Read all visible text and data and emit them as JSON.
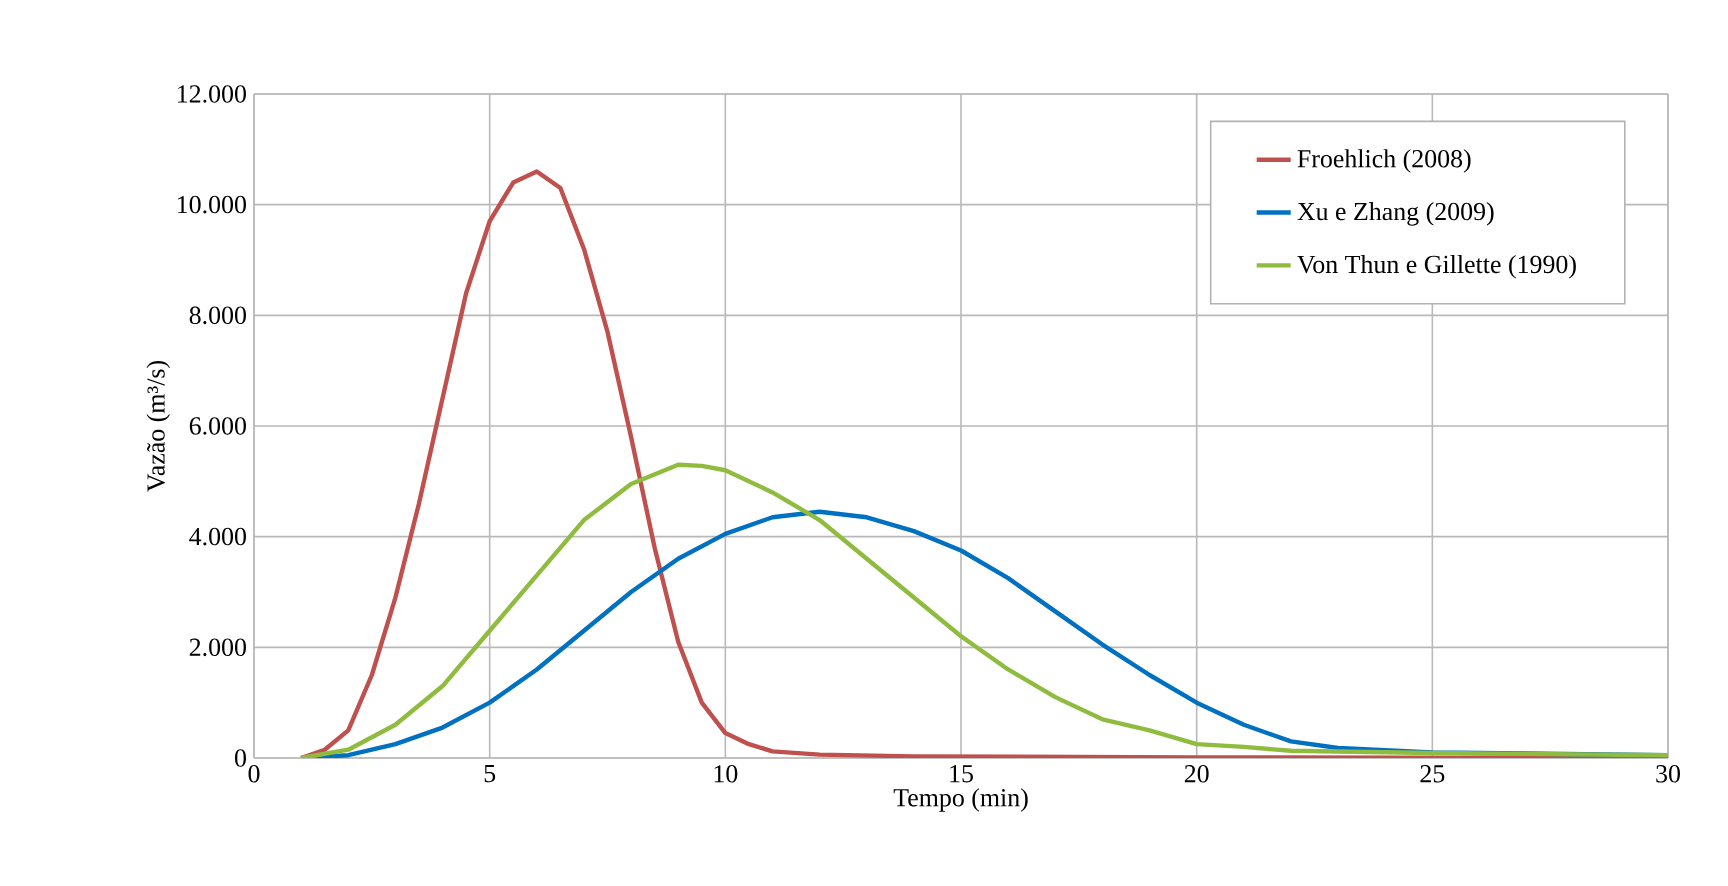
{
  "chart_data": {
    "type": "line",
    "xlabel": "Tempo (min)",
    "ylabel": "Vazão  (m³/s)",
    "xlim": [
      0,
      30
    ],
    "xticks": [
      0,
      5,
      10,
      15,
      20,
      25,
      30
    ],
    "ylim": [
      0,
      12000
    ],
    "yticks": [
      {
        "value": 0,
        "label": "0"
      },
      {
        "value": 2000,
        "label": "2.000"
      },
      {
        "value": 4000,
        "label": "4.000"
      },
      {
        "value": 6000,
        "label": "6.000"
      },
      {
        "value": 8000,
        "label": "8.000"
      },
      {
        "value": 10000,
        "label": "10.000"
      },
      {
        "value": 12000,
        "label": "12.000"
      }
    ],
    "grid": true,
    "legend": "top right",
    "marker": "none",
    "line_style": "solid",
    "series": [
      {
        "name": "Froehlich (2008)",
        "color": "#c0504d",
        "x": [
          1,
          1.5,
          2,
          2.5,
          3,
          3.5,
          4,
          4.5,
          5,
          5.5,
          6,
          6.5,
          7,
          7.5,
          8,
          8.5,
          9,
          9.5,
          10,
          10.5,
          11,
          12,
          14,
          20,
          30
        ],
        "values": [
          0,
          150,
          500,
          1500,
          2900,
          4600,
          6500,
          8400,
          9700,
          10400,
          10600,
          10300,
          9200,
          7700,
          5800,
          3800,
          2100,
          1000,
          450,
          250,
          120,
          60,
          30,
          10,
          0
        ]
      },
      {
        "name": "Xu e Zhang (2009)",
        "color": "#0070c0",
        "x": [
          1,
          2,
          3,
          4,
          5,
          6,
          7,
          8,
          9,
          10,
          11,
          12,
          13,
          14,
          15,
          16,
          17,
          18,
          19,
          20,
          21,
          22,
          23,
          25,
          30
        ],
        "values": [
          0,
          50,
          250,
          550,
          1000,
          1600,
          2300,
          3000,
          3600,
          4050,
          4350,
          4450,
          4350,
          4100,
          3750,
          3250,
          2650,
          2050,
          1500,
          1000,
          600,
          300,
          180,
          100,
          50
        ]
      },
      {
        "name": "Von Thun e Gillette (1990)",
        "color": "#8fbc3f",
        "x": [
          1,
          2,
          3,
          4,
          5,
          6,
          7,
          8,
          9,
          9.5,
          10,
          11,
          12,
          13,
          14,
          15,
          16,
          17,
          18,
          19,
          20,
          21,
          22,
          25,
          30
        ],
        "values": [
          0,
          150,
          600,
          1300,
          2300,
          3300,
          4300,
          4950,
          5300,
          5280,
          5200,
          4800,
          4300,
          3600,
          2900,
          2200,
          1600,
          1100,
          700,
          500,
          250,
          200,
          130,
          90,
          50
        ]
      }
    ]
  }
}
